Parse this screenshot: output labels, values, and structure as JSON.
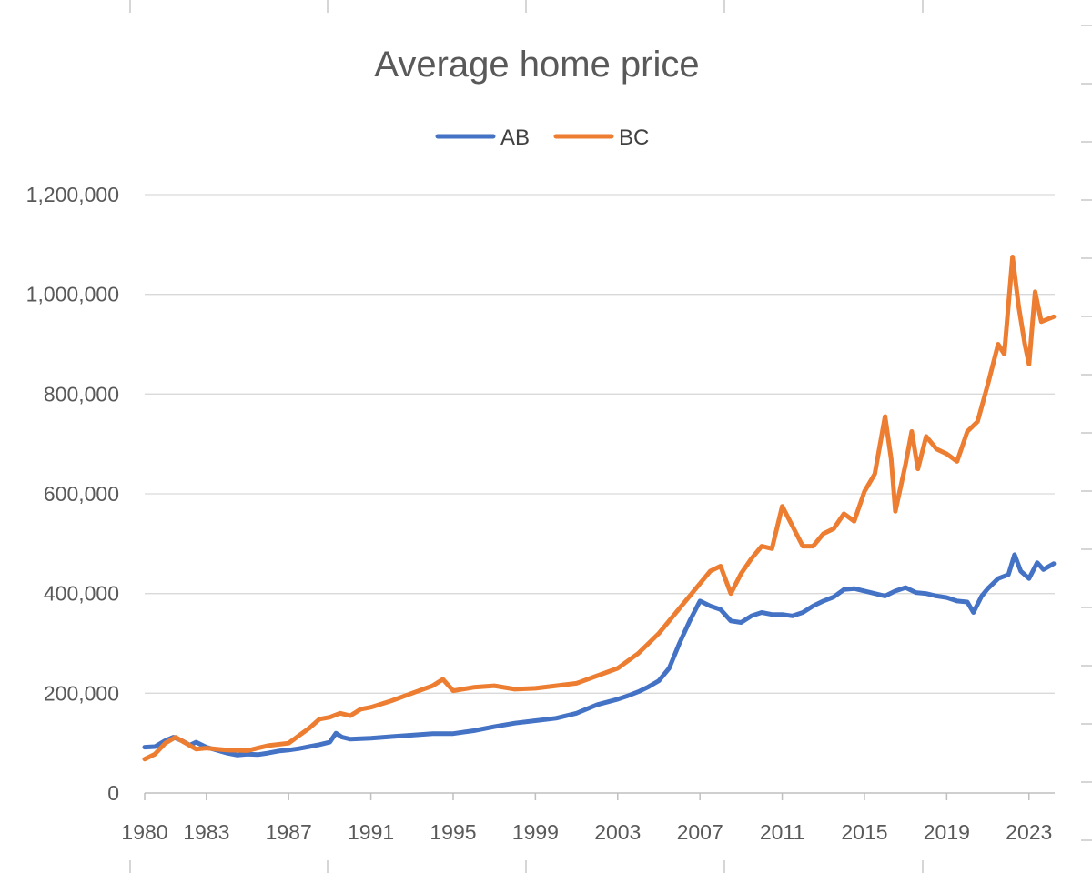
{
  "chart_data": {
    "type": "line",
    "title": "Average home price",
    "xlabel": "",
    "ylabel": "",
    "xlim": [
      1980.0,
      2024.25
    ],
    "ylim": [
      0,
      1200000
    ],
    "y_ticks": [
      0,
      200000,
      400000,
      600000,
      800000,
      1000000,
      1200000
    ],
    "y_tick_labels": [
      "0",
      "200,000",
      "400,000",
      "600,000",
      "800,000",
      "1,000,000",
      "1,200,000"
    ],
    "x_ticks": [
      1980,
      1983,
      1987,
      1991,
      1995,
      1999,
      2003,
      2007,
      2011,
      2015,
      2019,
      2023
    ],
    "grid": true,
    "legend": "top-center",
    "series": [
      {
        "name": "AB",
        "color": "#4472C4",
        "points": [
          [
            1980.0,
            92000
          ],
          [
            1980.5,
            93000
          ],
          [
            1981.0,
            105000
          ],
          [
            1981.4,
            112000
          ],
          [
            1981.8,
            105000
          ],
          [
            1982.2,
            96000
          ],
          [
            1982.5,
            102000
          ],
          [
            1983.0,
            92000
          ],
          [
            1983.5,
            86000
          ],
          [
            1984.0,
            80000
          ],
          [
            1984.5,
            76000
          ],
          [
            1985.0,
            78000
          ],
          [
            1985.5,
            77000
          ],
          [
            1986.0,
            80000
          ],
          [
            1986.5,
            84000
          ],
          [
            1987.0,
            86000
          ],
          [
            1987.5,
            89000
          ],
          [
            1988.0,
            93000
          ],
          [
            1988.5,
            97000
          ],
          [
            1989.0,
            102000
          ],
          [
            1989.3,
            120000
          ],
          [
            1989.6,
            112000
          ],
          [
            1990.0,
            108000
          ],
          [
            1991.0,
            110000
          ],
          [
            1992.0,
            113000
          ],
          [
            1993.0,
            116000
          ],
          [
            1994.0,
            119000
          ],
          [
            1995.0,
            119000
          ],
          [
            1996.0,
            125000
          ],
          [
            1997.0,
            133000
          ],
          [
            1998.0,
            140000
          ],
          [
            1999.0,
            145000
          ],
          [
            2000.0,
            150000
          ],
          [
            2001.0,
            160000
          ],
          [
            2002.0,
            177000
          ],
          [
            2003.0,
            188000
          ],
          [
            2003.5,
            195000
          ],
          [
            2004.0,
            203000
          ],
          [
            2004.5,
            213000
          ],
          [
            2005.0,
            225000
          ],
          [
            2005.5,
            250000
          ],
          [
            2006.0,
            300000
          ],
          [
            2006.5,
            345000
          ],
          [
            2007.0,
            385000
          ],
          [
            2007.5,
            375000
          ],
          [
            2008.0,
            368000
          ],
          [
            2008.5,
            345000
          ],
          [
            2009.0,
            342000
          ],
          [
            2009.5,
            355000
          ],
          [
            2010.0,
            362000
          ],
          [
            2010.5,
            358000
          ],
          [
            2011.0,
            358000
          ],
          [
            2011.5,
            355000
          ],
          [
            2012.0,
            362000
          ],
          [
            2012.5,
            375000
          ],
          [
            2013.0,
            385000
          ],
          [
            2013.5,
            393000
          ],
          [
            2014.0,
            408000
          ],
          [
            2014.5,
            410000
          ],
          [
            2015.0,
            405000
          ],
          [
            2015.5,
            400000
          ],
          [
            2016.0,
            395000
          ],
          [
            2016.5,
            405000
          ],
          [
            2017.0,
            412000
          ],
          [
            2017.5,
            402000
          ],
          [
            2018.0,
            400000
          ],
          [
            2018.5,
            395000
          ],
          [
            2019.0,
            392000
          ],
          [
            2019.5,
            385000
          ],
          [
            2020.0,
            383000
          ],
          [
            2020.3,
            362000
          ],
          [
            2020.7,
            395000
          ],
          [
            2021.0,
            410000
          ],
          [
            2021.5,
            430000
          ],
          [
            2022.0,
            438000
          ],
          [
            2022.3,
            478000
          ],
          [
            2022.6,
            445000
          ],
          [
            2023.0,
            430000
          ],
          [
            2023.4,
            462000
          ],
          [
            2023.7,
            448000
          ],
          [
            2024.2,
            460000
          ]
        ]
      },
      {
        "name": "BC",
        "color": "#ED7D31",
        "points": [
          [
            1980.0,
            68000
          ],
          [
            1980.5,
            78000
          ],
          [
            1981.0,
            100000
          ],
          [
            1981.5,
            112000
          ],
          [
            1982.0,
            100000
          ],
          [
            1982.5,
            88000
          ],
          [
            1983.0,
            90000
          ],
          [
            1983.5,
            88000
          ],
          [
            1984.0,
            86000
          ],
          [
            1985.0,
            85000
          ],
          [
            1985.5,
            90000
          ],
          [
            1986.0,
            95000
          ],
          [
            1987.0,
            100000
          ],
          [
            1987.5,
            115000
          ],
          [
            1988.0,
            130000
          ],
          [
            1988.5,
            148000
          ],
          [
            1989.0,
            152000
          ],
          [
            1989.5,
            160000
          ],
          [
            1990.0,
            155000
          ],
          [
            1990.5,
            168000
          ],
          [
            1991.0,
            172000
          ],
          [
            1992.0,
            185000
          ],
          [
            1993.0,
            200000
          ],
          [
            1994.0,
            215000
          ],
          [
            1994.5,
            228000
          ],
          [
            1995.0,
            205000
          ],
          [
            1996.0,
            212000
          ],
          [
            1997.0,
            215000
          ],
          [
            1998.0,
            208000
          ],
          [
            1999.0,
            210000
          ],
          [
            2000.0,
            215000
          ],
          [
            2001.0,
            220000
          ],
          [
            2002.0,
            235000
          ],
          [
            2003.0,
            250000
          ],
          [
            2004.0,
            280000
          ],
          [
            2005.0,
            320000
          ],
          [
            2006.0,
            370000
          ],
          [
            2007.0,
            420000
          ],
          [
            2007.5,
            445000
          ],
          [
            2008.0,
            455000
          ],
          [
            2008.5,
            400000
          ],
          [
            2009.0,
            440000
          ],
          [
            2009.5,
            470000
          ],
          [
            2010.0,
            495000
          ],
          [
            2010.5,
            490000
          ],
          [
            2011.0,
            575000
          ],
          [
            2011.5,
            535000
          ],
          [
            2012.0,
            495000
          ],
          [
            2012.5,
            495000
          ],
          [
            2013.0,
            520000
          ],
          [
            2013.5,
            530000
          ],
          [
            2014.0,
            560000
          ],
          [
            2014.5,
            545000
          ],
          [
            2015.0,
            605000
          ],
          [
            2015.5,
            640000
          ],
          [
            2016.0,
            755000
          ],
          [
            2016.3,
            670000
          ],
          [
            2016.5,
            565000
          ],
          [
            2017.0,
            660000
          ],
          [
            2017.3,
            725000
          ],
          [
            2017.6,
            650000
          ],
          [
            2018.0,
            715000
          ],
          [
            2018.5,
            690000
          ],
          [
            2019.0,
            680000
          ],
          [
            2019.5,
            665000
          ],
          [
            2020.0,
            725000
          ],
          [
            2020.5,
            745000
          ],
          [
            2021.0,
            820000
          ],
          [
            2021.5,
            900000
          ],
          [
            2021.8,
            880000
          ],
          [
            2022.2,
            1075000
          ],
          [
            2022.5,
            975000
          ],
          [
            2022.8,
            900000
          ],
          [
            2023.0,
            860000
          ],
          [
            2023.3,
            1005000
          ],
          [
            2023.6,
            945000
          ],
          [
            2024.2,
            955000
          ]
        ]
      }
    ]
  }
}
